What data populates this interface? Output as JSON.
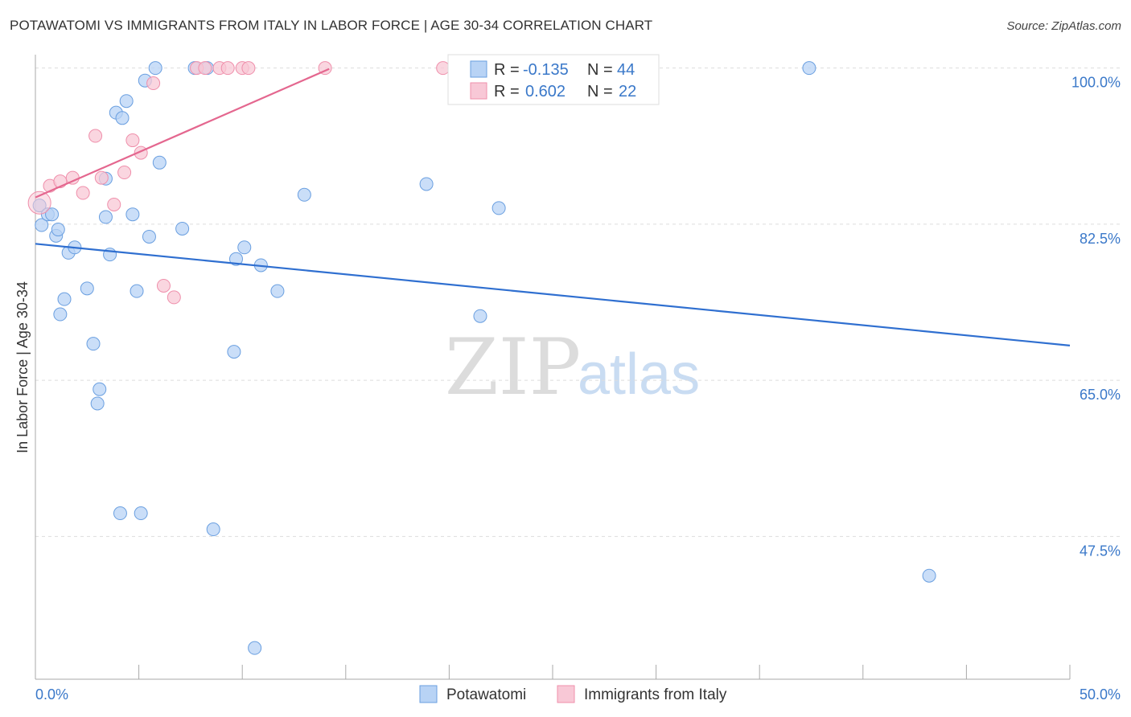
{
  "title": "POTAWATOMI VS IMMIGRANTS FROM ITALY IN LABOR FORCE | AGE 30-34 CORRELATION CHART",
  "source": "Source: ZipAtlas.com",
  "watermark": {
    "zip": "ZIP",
    "atlas": "atlas"
  },
  "legend": {
    "series1": {
      "r_label": "R = ",
      "r_value": "-0.135",
      "n_label": "N = ",
      "n_value": "44"
    },
    "series2": {
      "r_label": "R = ",
      "r_value": "0.602",
      "n_label": "N = ",
      "n_value": "22"
    }
  },
  "bottom_legend": {
    "series1": "Potawatomi",
    "series2": "Immigrants from Italy"
  },
  "colors": {
    "blue_fill": "#b8d3f5",
    "blue_stroke": "#6a9fe0",
    "blue_line": "#2f6fd0",
    "pink_fill": "#f8c8d6",
    "pink_stroke": "#ef8fab",
    "pink_line": "#e4678f",
    "tick_text": "#3a78c9",
    "grid": "#dddddd"
  },
  "chart_data": {
    "type": "scatter",
    "title": "POTAWATOMI VS IMMIGRANTS FROM ITALY IN LABOR FORCE | AGE 30-34 CORRELATION CHART",
    "xlabel": "",
    "ylabel": "In Labor Force | Age 30-34",
    "xlim": [
      0,
      50
    ],
    "ylim": [
      31.5,
      101.5
    ],
    "x_tick_labels": [
      "0.0%",
      "50.0%"
    ],
    "y_ticks": [
      47.5,
      65.0,
      82.5,
      100.0
    ],
    "y_tick_labels": [
      "47.5%",
      "65.0%",
      "82.5%",
      "100.0%"
    ],
    "grid": "horizontal-dashed",
    "series": [
      {
        "name": "Potawatomi",
        "color": "#6a9fe0",
        "r": -0.135,
        "n": 44,
        "trend": {
          "x": [
            0,
            50
          ],
          "y": [
            80.3,
            68.9
          ]
        },
        "points": [
          [
            0.2,
            84.6
          ],
          [
            0.3,
            82.4
          ],
          [
            0.6,
            83.6
          ],
          [
            0.8,
            83.6
          ],
          [
            1.0,
            81.2
          ],
          [
            1.1,
            81.9
          ],
          [
            1.2,
            72.4
          ],
          [
            1.4,
            74.1
          ],
          [
            1.6,
            79.3
          ],
          [
            1.9,
            79.9
          ],
          [
            2.5,
            75.3
          ],
          [
            2.8,
            69.1
          ],
          [
            3.0,
            62.4
          ],
          [
            3.1,
            64.0
          ],
          [
            3.4,
            87.6
          ],
          [
            3.4,
            83.3
          ],
          [
            3.6,
            79.1
          ],
          [
            3.9,
            95.0
          ],
          [
            4.1,
            50.1
          ],
          [
            4.2,
            94.4
          ],
          [
            4.4,
            96.3
          ],
          [
            4.7,
            83.6
          ],
          [
            4.9,
            75.0
          ],
          [
            5.1,
            50.1
          ],
          [
            5.3,
            98.6
          ],
          [
            5.5,
            81.1
          ],
          [
            5.8,
            100.0
          ],
          [
            6.0,
            89.4
          ],
          [
            7.1,
            82.0
          ],
          [
            7.7,
            100.0
          ],
          [
            8.3,
            100.0
          ],
          [
            8.6,
            48.3
          ],
          [
            9.6,
            68.2
          ],
          [
            9.7,
            78.6
          ],
          [
            10.1,
            79.9
          ],
          [
            10.6,
            35.0
          ],
          [
            10.9,
            77.9
          ],
          [
            11.7,
            75.0
          ],
          [
            13.0,
            85.8
          ],
          [
            18.9,
            87.0
          ],
          [
            21.5,
            72.2
          ],
          [
            22.4,
            84.3
          ],
          [
            37.4,
            100.0
          ],
          [
            43.2,
            43.1
          ]
        ]
      },
      {
        "name": "Immigrants from Italy",
        "color": "#ef8fab",
        "r": 0.602,
        "n": 22,
        "trend": {
          "x": [
            0,
            14.2
          ],
          "y": [
            85.5,
            99.9
          ]
        },
        "points": [
          [
            0.2,
            84.9
          ],
          [
            0.7,
            86.8
          ],
          [
            1.2,
            87.3
          ],
          [
            1.8,
            87.7
          ],
          [
            2.3,
            86.0
          ],
          [
            2.9,
            92.4
          ],
          [
            3.2,
            87.7
          ],
          [
            3.8,
            84.7
          ],
          [
            4.3,
            88.3
          ],
          [
            4.7,
            91.9
          ],
          [
            5.1,
            90.5
          ],
          [
            5.7,
            98.3
          ],
          [
            6.2,
            75.6
          ],
          [
            6.7,
            74.3
          ],
          [
            7.8,
            100.0
          ],
          [
            8.2,
            100.0
          ],
          [
            8.9,
            100.0
          ],
          [
            9.3,
            100.0
          ],
          [
            10.0,
            100.0
          ],
          [
            10.3,
            100.0
          ],
          [
            14.0,
            100.0
          ],
          [
            19.7,
            100.0
          ]
        ]
      }
    ]
  }
}
